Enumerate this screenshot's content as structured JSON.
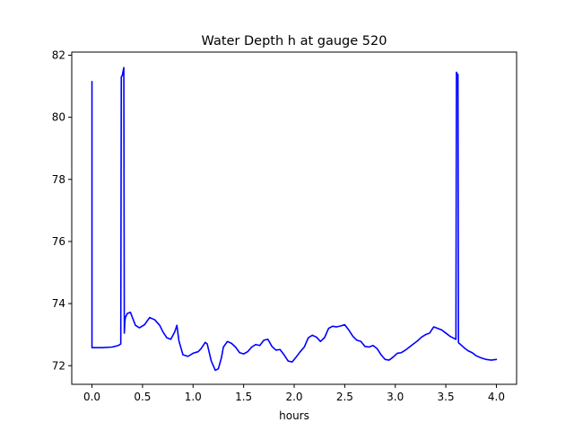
{
  "chart_data": {
    "type": "line",
    "title": "Water Depth h at gauge 520",
    "xlabel": "hours",
    "ylabel": "",
    "xlim": [
      -0.2,
      4.2
    ],
    "ylim": [
      71.4,
      82.1
    ],
    "xticks": [
      0.0,
      0.5,
      1.0,
      1.5,
      2.0,
      2.5,
      3.0,
      3.5,
      4.0
    ],
    "xtick_labels": [
      "0.0",
      "0.5",
      "1.0",
      "1.5",
      "2.0",
      "2.5",
      "3.0",
      "3.5",
      "4.0"
    ],
    "yticks": [
      72,
      74,
      76,
      78,
      80,
      82
    ],
    "ytick_labels": [
      "72",
      "74",
      "76",
      "78",
      "80",
      "82"
    ],
    "grid": false,
    "series": [
      {
        "color": "#0000ff",
        "x": [
          0.0,
          0.0,
          0.01,
          0.1,
          0.2,
          0.26,
          0.285,
          0.29,
          0.3,
          0.315,
          0.32,
          0.325,
          0.33,
          0.35,
          0.38,
          0.4,
          0.43,
          0.47,
          0.52,
          0.57,
          0.62,
          0.67,
          0.7,
          0.74,
          0.78,
          0.82,
          0.84,
          0.86,
          0.9,
          0.95,
          1.0,
          1.05,
          1.08,
          1.12,
          1.14,
          1.18,
          1.22,
          1.25,
          1.28,
          1.3,
          1.34,
          1.38,
          1.42,
          1.46,
          1.5,
          1.54,
          1.58,
          1.62,
          1.66,
          1.7,
          1.74,
          1.78,
          1.82,
          1.86,
          1.9,
          1.94,
          1.98,
          2.02,
          2.06,
          2.1,
          2.14,
          2.18,
          2.22,
          2.26,
          2.3,
          2.34,
          2.38,
          2.42,
          2.46,
          2.5,
          2.54,
          2.58,
          2.62,
          2.66,
          2.7,
          2.74,
          2.78,
          2.82,
          2.86,
          2.9,
          2.94,
          2.98,
          3.02,
          3.06,
          3.1,
          3.14,
          3.18,
          3.22,
          3.26,
          3.3,
          3.34,
          3.38,
          3.42,
          3.46,
          3.5,
          3.54,
          3.58,
          3.6,
          3.605,
          3.61,
          3.62,
          3.625,
          3.63,
          3.64,
          3.68,
          3.72,
          3.76,
          3.8,
          3.85,
          3.9,
          3.95,
          4.0
        ],
        "y": [
          81.15,
          72.58,
          72.58,
          72.58,
          72.6,
          72.65,
          72.7,
          81.3,
          81.35,
          81.6,
          73.05,
          73.4,
          73.55,
          73.68,
          73.72,
          73.55,
          73.3,
          73.22,
          73.32,
          73.55,
          73.48,
          73.3,
          73.1,
          72.9,
          72.85,
          73.1,
          73.3,
          72.8,
          72.35,
          72.3,
          72.4,
          72.45,
          72.55,
          72.75,
          72.7,
          72.15,
          71.85,
          71.9,
          72.25,
          72.6,
          72.78,
          72.72,
          72.6,
          72.42,
          72.38,
          72.45,
          72.6,
          72.68,
          72.65,
          72.82,
          72.85,
          72.62,
          72.5,
          72.52,
          72.35,
          72.15,
          72.12,
          72.28,
          72.45,
          72.6,
          72.9,
          72.98,
          72.92,
          72.78,
          72.9,
          73.2,
          73.27,
          73.25,
          73.28,
          73.32,
          73.15,
          72.95,
          72.82,
          72.78,
          72.62,
          72.6,
          72.65,
          72.55,
          72.35,
          72.2,
          72.18,
          72.28,
          72.4,
          72.42,
          72.5,
          72.6,
          72.7,
          72.8,
          72.92,
          73.0,
          73.05,
          73.25,
          73.2,
          73.15,
          73.05,
          72.95,
          72.88,
          72.85,
          81.45,
          81.4,
          81.38,
          72.75,
          72.72,
          72.7,
          72.58,
          72.48,
          72.42,
          72.32,
          72.25,
          72.2,
          72.18,
          72.2
        ]
      }
    ]
  }
}
